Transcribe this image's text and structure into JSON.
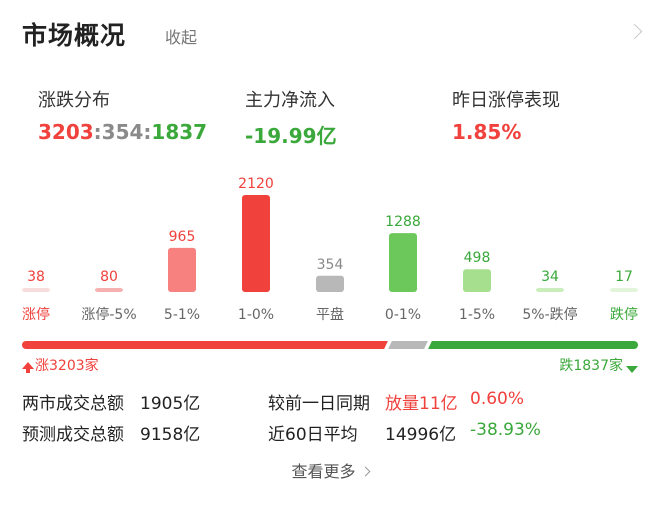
{
  "header": {
    "title": "市场概况",
    "collapse_label": "收起"
  },
  "stats": {
    "distribution": {
      "label": "涨跌分布",
      "up": "3203",
      "flat": "354",
      "down": "1837",
      "sep": ":"
    },
    "main_flow": {
      "label": "主力净流入",
      "value": "-19.99亿"
    },
    "limit_up_perf": {
      "label": "昨日涨停表现",
      "value": "1.85%"
    }
  },
  "chart_data": {
    "type": "bar",
    "categories": [
      "涨停",
      "涨停-5%",
      "5-1%",
      "1-0%",
      "平盘",
      "0-1%",
      "1-5%",
      "5%-跌停",
      "跌停"
    ],
    "values": [
      38,
      80,
      965,
      2120,
      354,
      1288,
      498,
      34,
      17
    ],
    "colors": [
      "#f9dcdc",
      "#f7b0b0",
      "#f7817e",
      "#f0413c",
      "#b8b8b8",
      "#6cc85a",
      "#a6e08e",
      "#c9edbb",
      "#e2f5da"
    ],
    "label_colors": [
      "#f0413c",
      "#f0413c",
      "#f0413c",
      "#f0413c",
      "#8a8a8a",
      "#3aa83a",
      "#3aa83a",
      "#3aa83a",
      "#3aa83a"
    ],
    "category_colors": [
      "#f0413c",
      "#666666",
      "#666666",
      "#666666",
      "#666666",
      "#666666",
      "#666666",
      "#666666",
      "#3aa83a"
    ],
    "ylim": [
      0,
      2120
    ]
  },
  "ratio": {
    "up_label": "涨3203家",
    "down_label": "跌1837家",
    "up": 3203,
    "flat": 354,
    "down": 1837
  },
  "turnover": {
    "total_label": "两市成交总额",
    "total_value": "1905亿",
    "compare_label": "较前一日同期",
    "compare_value": "放量11亿",
    "compare_pct": "0.60%",
    "forecast_label": "预测成交总额",
    "forecast_value": "9158亿",
    "avg_label": "近60日平均",
    "avg_value": "14996亿",
    "avg_pct": "-38.93%"
  },
  "footer": {
    "more_label": "查看更多"
  }
}
